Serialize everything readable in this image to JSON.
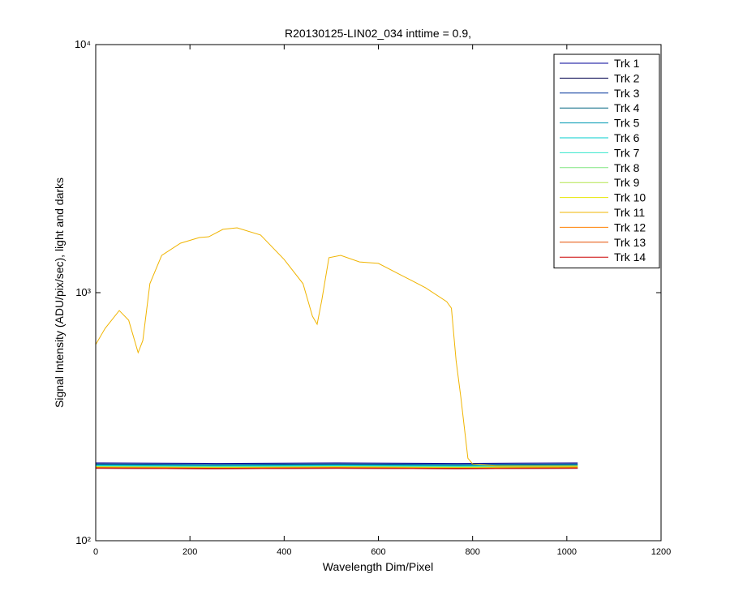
{
  "chart_data": {
    "type": "line",
    "title": "R20130125-LIN02_034 inttime = 0.9,",
    "xlabel": "Wavelength Dim/Pixel",
    "ylabel": "Signal Intensity (ADU/pix/sec), light and darks",
    "xlim": [
      0,
      1200
    ],
    "xticks": [
      0,
      200,
      400,
      600,
      800,
      1000,
      1200
    ],
    "ylim": [
      100,
      10000
    ],
    "ylog": true,
    "yticks": [
      {
        "value": 100,
        "label": "10²"
      },
      {
        "value": 1000,
        "label": "10³"
      },
      {
        "value": 10000,
        "label": "10⁴"
      }
    ],
    "legend": "top-right",
    "series": [
      {
        "name": "Trk 1",
        "color": "#000099",
        "x": [
          0,
          256,
          512,
          768,
          1023
        ],
        "values": [
          206,
          205,
          206,
          205,
          206
        ]
      },
      {
        "name": "Trk 2",
        "color": "#00004d",
        "x": [
          0,
          256,
          512,
          768,
          1023
        ],
        "values": [
          196,
          195,
          196,
          195,
          196
        ]
      },
      {
        "name": "Trk 3",
        "color": "#003399",
        "x": [
          0,
          256,
          512,
          768,
          1023
        ],
        "values": [
          204,
          203,
          204,
          203,
          204
        ]
      },
      {
        "name": "Trk 4",
        "color": "#006680",
        "x": [
          0,
          256,
          512,
          768,
          1023
        ],
        "values": [
          203,
          202,
          203,
          202,
          203
        ]
      },
      {
        "name": "Trk 5",
        "color": "#0099b3",
        "x": [
          0,
          256,
          512,
          768,
          1023
        ],
        "values": [
          202,
          201,
          202,
          201,
          202
        ]
      },
      {
        "name": "Trk 6",
        "color": "#00cccc",
        "x": [
          0,
          256,
          512,
          768,
          1023
        ],
        "values": [
          201,
          200,
          201,
          200,
          201
        ]
      },
      {
        "name": "Trk 7",
        "color": "#33e6cc",
        "x": [
          0,
          256,
          512,
          768,
          1023
        ],
        "values": [
          200,
          199,
          200,
          199,
          200
        ]
      },
      {
        "name": "Trk 8",
        "color": "#80e680",
        "x": [
          0,
          256,
          512,
          768,
          1023
        ],
        "values": [
          199,
          198,
          199,
          198,
          199
        ]
      },
      {
        "name": "Trk 9",
        "color": "#b3e64d",
        "x": [
          0,
          256,
          512,
          768,
          1023
        ],
        "values": [
          199,
          198,
          199,
          198,
          199
        ]
      },
      {
        "name": "Trk 10",
        "color": "#e6e600",
        "x": [
          0,
          256,
          512,
          768,
          1023
        ],
        "values": [
          198,
          197,
          198,
          197,
          198
        ]
      },
      {
        "name": "Trk 11",
        "color": "#f0b400",
        "x": [
          0,
          20,
          50,
          70,
          90,
          100,
          115,
          140,
          180,
          220,
          240,
          270,
          300,
          350,
          400,
          440,
          460,
          470,
          480,
          495,
          520,
          560,
          600,
          650,
          700,
          745,
          755,
          765,
          775,
          790,
          800,
          850,
          1023
        ],
        "values": [
          618,
          718,
          847,
          774,
          573,
          641,
          1087,
          1413,
          1583,
          1668,
          1680,
          1800,
          1825,
          1707,
          1361,
          1087,
          804,
          746,
          935,
          1383,
          1413,
          1330,
          1312,
          1172,
          1047,
          920,
          866,
          531,
          379,
          215,
          204,
          200,
          200
        ]
      },
      {
        "name": "Trk 12",
        "color": "#ff8000",
        "x": [
          0,
          256,
          512,
          768,
          1023
        ],
        "values": [
          197,
          196,
          197,
          196,
          197
        ]
      },
      {
        "name": "Trk 13",
        "color": "#e64d00",
        "x": [
          0,
          256,
          512,
          768,
          1023
        ],
        "values": [
          197,
          196,
          197,
          196,
          197
        ]
      },
      {
        "name": "Trk 14",
        "color": "#cc0000",
        "x": [
          0,
          256,
          512,
          768,
          1023
        ],
        "values": [
          196,
          195,
          196,
          195,
          196
        ]
      }
    ]
  }
}
